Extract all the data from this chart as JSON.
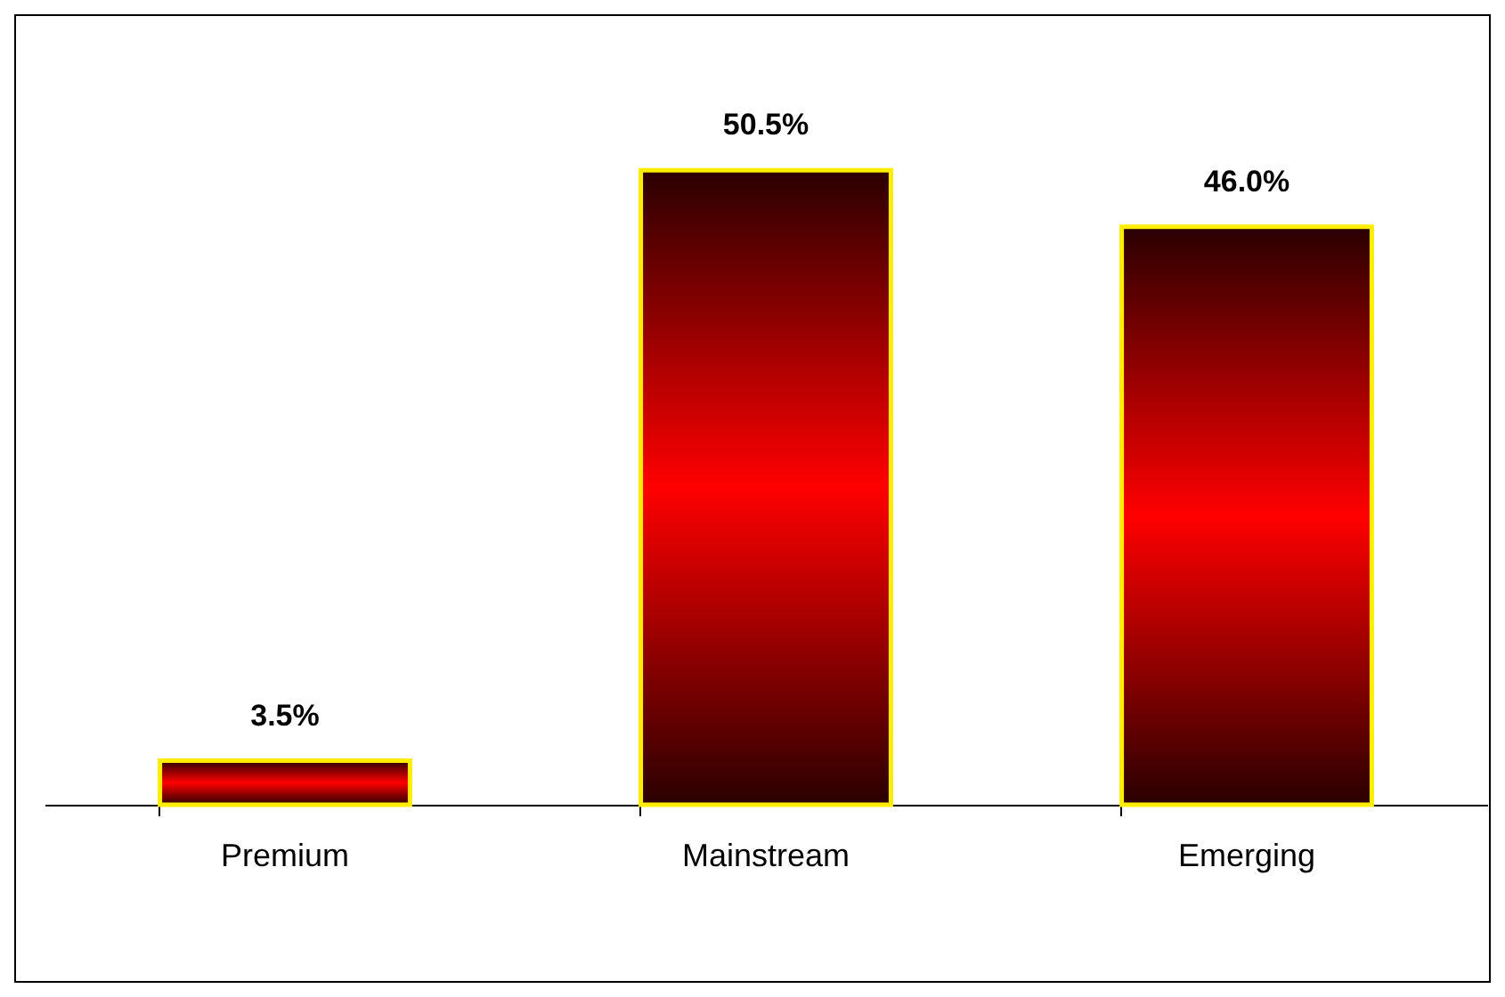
{
  "chart_data": {
    "type": "bar",
    "categories": [
      "Premium",
      "Mainstream",
      "Emerging"
    ],
    "values": [
      3.5,
      50.5,
      46.0
    ],
    "value_labels": [
      "3.5%",
      "50.5%",
      "46.0%"
    ],
    "color": "#ff0000",
    "grid": false,
    "legend": false
  }
}
